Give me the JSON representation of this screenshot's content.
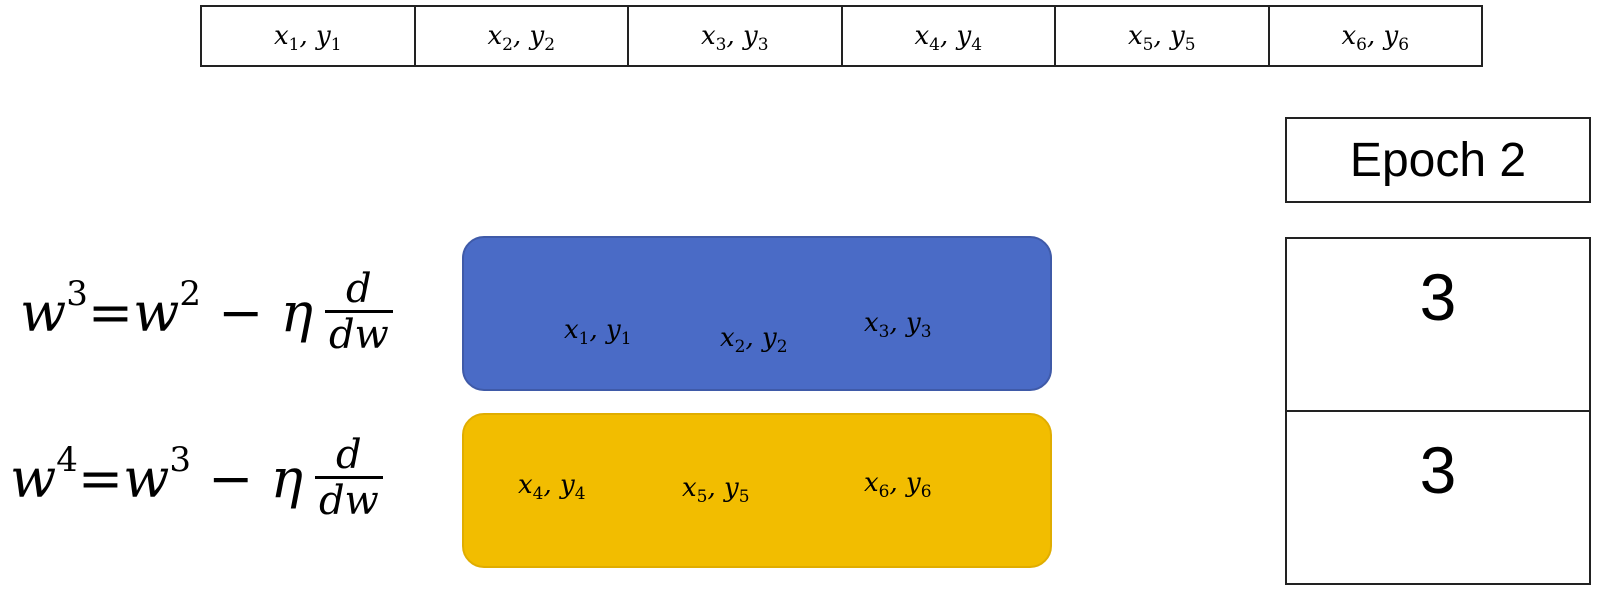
{
  "data_strip": [
    {
      "x": "x",
      "xi": "1",
      "y": "y",
      "yi": "1"
    },
    {
      "x": "x",
      "xi": "2",
      "y": "y",
      "yi": "2"
    },
    {
      "x": "x",
      "xi": "3",
      "y": "y",
      "yi": "3"
    },
    {
      "x": "x",
      "xi": "4",
      "y": "y",
      "yi": "4"
    },
    {
      "x": "x",
      "xi": "5",
      "y": "y",
      "yi": "5"
    },
    {
      "x": "x",
      "xi": "6",
      "y": "y",
      "yi": "6"
    }
  ],
  "epoch": {
    "label": "Epoch 2",
    "batch_counts": [
      "3",
      "3"
    ]
  },
  "batches": [
    {
      "color": "#4a6bc6",
      "samples": [
        {
          "x": "x",
          "xi": "1",
          "y": "y",
          "yi": "1"
        },
        {
          "x": "x",
          "xi": "2",
          "y": "y",
          "yi": "2"
        },
        {
          "x": "x",
          "xi": "3",
          "y": "y",
          "yi": "3"
        }
      ]
    },
    {
      "color": "#f2bd00",
      "samples": [
        {
          "x": "x",
          "xi": "4",
          "y": "y",
          "yi": "4"
        },
        {
          "x": "x",
          "xi": "5",
          "y": "y",
          "yi": "5"
        },
        {
          "x": "x",
          "xi": "6",
          "y": "y",
          "yi": "6"
        }
      ]
    }
  ],
  "formulas": [
    {
      "lhs": "w",
      "lhs_sup": "3",
      "eq": "=",
      "rhs": "w",
      "rhs_sup": "2",
      "op": " − η",
      "frac_num": "d",
      "frac_den": "dw"
    },
    {
      "lhs": "w",
      "lhs_sup": "4",
      "eq": "=",
      "rhs": "w",
      "rhs_sup": "3",
      "op": " − η",
      "frac_num": "d",
      "frac_den": "dw"
    }
  ]
}
